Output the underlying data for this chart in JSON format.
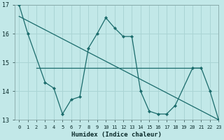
{
  "xlabel": "Humidex (Indice chaleur)",
  "background_color": "#c2e8e8",
  "grid_color": "#aad4d4",
  "line_color": "#1a6b6b",
  "line1_x": [
    0,
    1,
    3,
    4,
    5,
    6,
    7,
    8,
    9,
    10,
    11,
    12,
    13,
    14,
    15,
    16,
    17,
    18,
    20,
    21,
    22,
    23
  ],
  "line1_y": [
    17.0,
    16.0,
    14.3,
    14.1,
    13.2,
    13.7,
    13.8,
    15.5,
    16.0,
    16.55,
    16.2,
    15.9,
    15.9,
    14.0,
    13.3,
    13.2,
    13.2,
    13.5,
    14.8,
    14.8,
    14.0,
    13.0
  ],
  "line2_x": [
    2,
    3,
    4,
    5,
    6,
    7,
    8,
    9,
    10,
    11,
    12,
    13,
    14,
    15,
    16,
    17,
    18,
    19,
    20,
    21
  ],
  "line2_y": [
    14.8,
    14.8,
    14.8,
    14.8,
    14.8,
    14.8,
    14.8,
    14.8,
    14.8,
    14.8,
    14.8,
    14.8,
    14.8,
    14.8,
    14.8,
    14.8,
    14.8,
    14.8,
    14.8,
    14.8
  ],
  "line3_x": [
    0,
    23
  ],
  "line3_y": [
    16.6,
    13.0
  ],
  "ylim": [
    13,
    17
  ],
  "xlim": [
    -0.5,
    23
  ],
  "yticks": [
    13,
    14,
    15,
    16,
    17
  ],
  "xticks": [
    0,
    1,
    2,
    3,
    4,
    5,
    6,
    7,
    8,
    9,
    10,
    11,
    12,
    13,
    14,
    15,
    16,
    17,
    18,
    19,
    20,
    21,
    22,
    23
  ]
}
